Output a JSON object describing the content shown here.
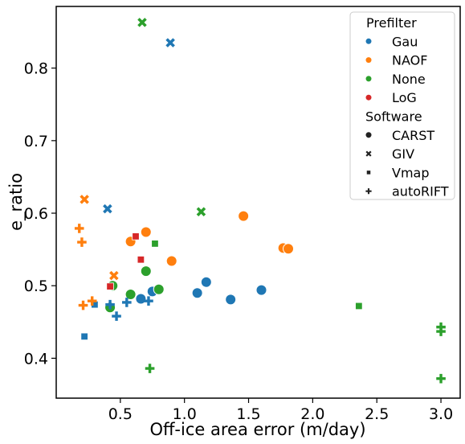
{
  "chart_data": {
    "type": "scatter",
    "xlabel": "Off-ice area error (m/day)",
    "ylabel": "e_ratio",
    "xlim": [
      0.0,
      3.15
    ],
    "ylim": [
      0.345,
      0.885
    ],
    "xticks": [
      "0.5",
      "1.0",
      "1.5",
      "2.0",
      "2.5",
      "3.0"
    ],
    "xtick_values": [
      0.5,
      1.0,
      1.5,
      2.0,
      2.5,
      3.0
    ],
    "yticks": [
      "0.4",
      "0.5",
      "0.6",
      "0.7",
      "0.8"
    ],
    "ytick_values": [
      0.4,
      0.5,
      0.6,
      0.7,
      0.8
    ],
    "grid": false,
    "legend": {
      "placement": "top-right",
      "hue_title": "Prefilter",
      "hue_entries": [
        {
          "name": "Gau",
          "color": "#1f77b4"
        },
        {
          "name": "NAOF",
          "color": "#ff7f0e"
        },
        {
          "name": "None",
          "color": "#2ca02c"
        },
        {
          "name": "LoG",
          "color": "#d62728"
        }
      ],
      "style_title": "Software",
      "style_entries": [
        {
          "name": "CARST",
          "marker": "circle"
        },
        {
          "name": "GIV",
          "marker": "x"
        },
        {
          "name": "Vmap",
          "marker": "square"
        },
        {
          "name": "autoRIFT",
          "marker": "plus"
        }
      ]
    },
    "points": [
      {
        "x": 0.75,
        "y": 0.492,
        "prefilter": "Gau",
        "software": "CARST"
      },
      {
        "x": 0.66,
        "y": 0.482,
        "prefilter": "Gau",
        "software": "CARST"
      },
      {
        "x": 1.1,
        "y": 0.49,
        "prefilter": "Gau",
        "software": "CARST"
      },
      {
        "x": 1.17,
        "y": 0.505,
        "prefilter": "Gau",
        "software": "CARST"
      },
      {
        "x": 1.36,
        "y": 0.481,
        "prefilter": "Gau",
        "software": "CARST"
      },
      {
        "x": 1.6,
        "y": 0.494,
        "prefilter": "Gau",
        "software": "CARST"
      },
      {
        "x": 0.58,
        "y": 0.561,
        "prefilter": "NAOF",
        "software": "CARST"
      },
      {
        "x": 0.7,
        "y": 0.574,
        "prefilter": "NAOF",
        "software": "CARST"
      },
      {
        "x": 0.9,
        "y": 0.534,
        "prefilter": "NAOF",
        "software": "CARST"
      },
      {
        "x": 1.46,
        "y": 0.596,
        "prefilter": "NAOF",
        "software": "CARST"
      },
      {
        "x": 1.77,
        "y": 0.552,
        "prefilter": "NAOF",
        "software": "CARST"
      },
      {
        "x": 1.81,
        "y": 0.551,
        "prefilter": "NAOF",
        "software": "CARST"
      },
      {
        "x": 0.44,
        "y": 0.5,
        "prefilter": "None",
        "software": "CARST"
      },
      {
        "x": 0.42,
        "y": 0.47,
        "prefilter": "None",
        "software": "CARST"
      },
      {
        "x": 0.58,
        "y": 0.488,
        "prefilter": "None",
        "software": "CARST"
      },
      {
        "x": 0.7,
        "y": 0.52,
        "prefilter": "None",
        "software": "CARST"
      },
      {
        "x": 0.8,
        "y": 0.495,
        "prefilter": "None",
        "software": "CARST"
      },
      {
        "x": 0.4,
        "y": 0.606,
        "prefilter": "Gau",
        "software": "GIV"
      },
      {
        "x": 0.89,
        "y": 0.835,
        "prefilter": "Gau",
        "software": "GIV"
      },
      {
        "x": 0.22,
        "y": 0.619,
        "prefilter": "NAOF",
        "software": "GIV"
      },
      {
        "x": 0.45,
        "y": 0.514,
        "prefilter": "NAOF",
        "software": "GIV"
      },
      {
        "x": 0.67,
        "y": 0.863,
        "prefilter": "None",
        "software": "GIV"
      },
      {
        "x": 1.13,
        "y": 0.602,
        "prefilter": "None",
        "software": "GIV"
      },
      {
        "x": 0.22,
        "y": 0.43,
        "prefilter": "Gau",
        "software": "Vmap"
      },
      {
        "x": 0.3,
        "y": 0.474,
        "prefilter": "Gau",
        "software": "Vmap"
      },
      {
        "x": 0.77,
        "y": 0.558,
        "prefilter": "None",
        "software": "Vmap"
      },
      {
        "x": 2.36,
        "y": 0.472,
        "prefilter": "None",
        "software": "Vmap"
      },
      {
        "x": 0.42,
        "y": 0.499,
        "prefilter": "LoG",
        "software": "Vmap"
      },
      {
        "x": 0.62,
        "y": 0.568,
        "prefilter": "LoG",
        "software": "Vmap"
      },
      {
        "x": 0.66,
        "y": 0.536,
        "prefilter": "LoG",
        "software": "Vmap"
      },
      {
        "x": 0.42,
        "y": 0.474,
        "prefilter": "Gau",
        "software": "autoRIFT"
      },
      {
        "x": 0.47,
        "y": 0.458,
        "prefilter": "Gau",
        "software": "autoRIFT"
      },
      {
        "x": 0.55,
        "y": 0.477,
        "prefilter": "Gau",
        "software": "autoRIFT"
      },
      {
        "x": 0.72,
        "y": 0.479,
        "prefilter": "Gau",
        "software": "autoRIFT"
      },
      {
        "x": 0.18,
        "y": 0.579,
        "prefilter": "NAOF",
        "software": "autoRIFT"
      },
      {
        "x": 0.2,
        "y": 0.56,
        "prefilter": "NAOF",
        "software": "autoRIFT"
      },
      {
        "x": 0.21,
        "y": 0.473,
        "prefilter": "NAOF",
        "software": "autoRIFT"
      },
      {
        "x": 0.28,
        "y": 0.479,
        "prefilter": "NAOF",
        "software": "autoRIFT"
      },
      {
        "x": 0.73,
        "y": 0.386,
        "prefilter": "None",
        "software": "autoRIFT"
      },
      {
        "x": 3.0,
        "y": 0.443,
        "prefilter": "None",
        "software": "autoRIFT"
      },
      {
        "x": 3.0,
        "y": 0.437,
        "prefilter": "None",
        "software": "autoRIFT"
      },
      {
        "x": 3.0,
        "y": 0.372,
        "prefilter": "None",
        "software": "autoRIFT"
      }
    ]
  }
}
